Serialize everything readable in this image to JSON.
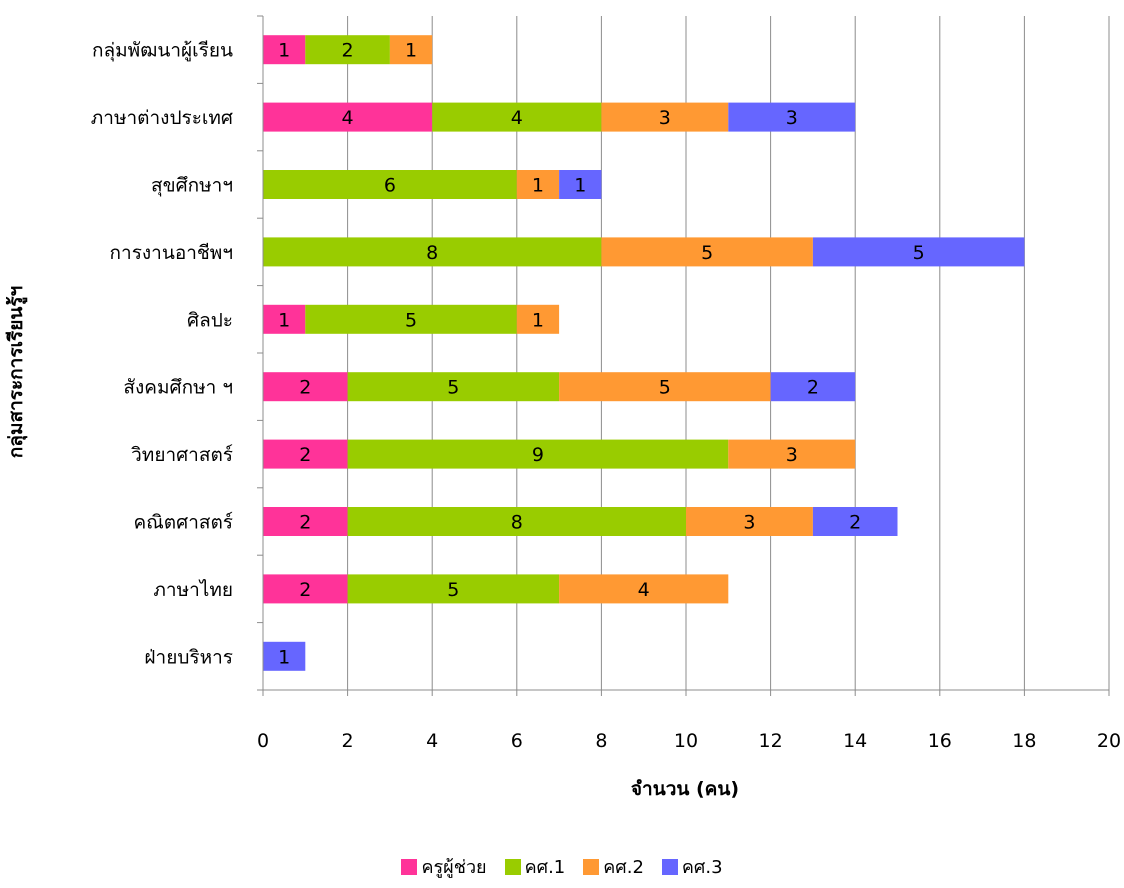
{
  "chart_data": {
    "type": "bar",
    "orientation": "horizontal",
    "stacked": true,
    "categories": [
      "กลุ่มพัฒนาผู้เรียน",
      "ภาษาต่างประเทศ",
      "สุขศึกษาฯ",
      "การงานอาชีพฯ",
      "ศิลปะ",
      "สังคมศึกษา ฯ",
      "วิทยาศาสตร์",
      "คณิตศาสตร์",
      "ภาษาไทย",
      "ฝ่ายบริหาร"
    ],
    "series": [
      {
        "name": "ครูผู้ช่วย",
        "color": "#ff3399",
        "values": [
          1,
          4,
          0,
          0,
          1,
          2,
          2,
          2,
          2,
          0
        ]
      },
      {
        "name": "คศ.1",
        "color": "#99cc00",
        "values": [
          2,
          4,
          6,
          8,
          5,
          5,
          9,
          8,
          5,
          0
        ]
      },
      {
        "name": "คศ.2",
        "color": "#ff9933",
        "values": [
          1,
          3,
          1,
          5,
          1,
          5,
          3,
          3,
          4,
          0
        ]
      },
      {
        "name": "คศ.3",
        "color": "#6666ff",
        "values": [
          0,
          3,
          1,
          5,
          0,
          2,
          0,
          2,
          0,
          1
        ]
      }
    ],
    "xlabel": "จำนวน (คน)",
    "ylabel": "กลุ่มสาระการเรียนรู้ฯ",
    "xlim": [
      0,
      20
    ],
    "xticks": [
      0,
      2,
      4,
      6,
      8,
      10,
      12,
      14,
      16,
      18,
      20
    ],
    "grid": true,
    "legend": "bottom"
  }
}
